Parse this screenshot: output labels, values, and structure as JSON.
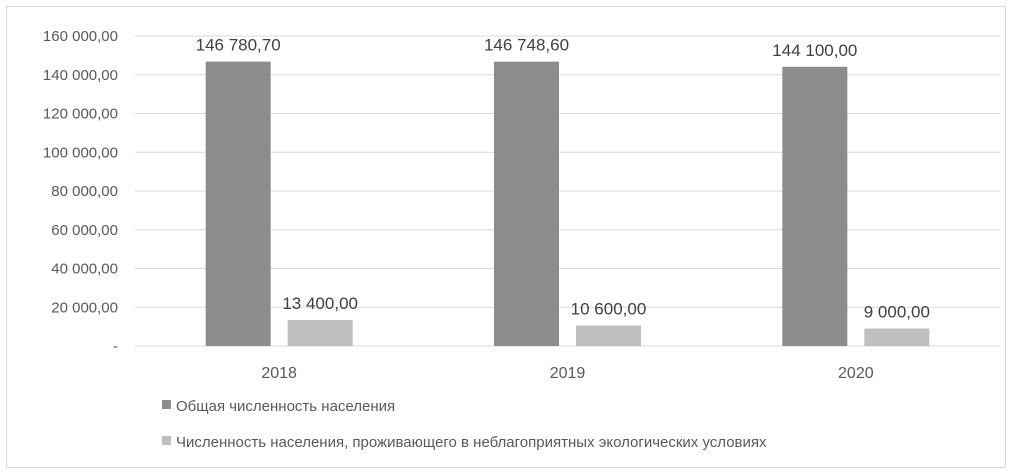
{
  "chart_data": {
    "type": "bar",
    "categories": [
      "2018",
      "2019",
      "2020"
    ],
    "series": [
      {
        "name": "Общая численность населения",
        "values": [
          146780.7,
          146748.6,
          144100.0
        ],
        "labels": [
          "146 780,70",
          "146 748,60",
          "144 100,00"
        ],
        "color": "#8c8c8c"
      },
      {
        "name": "Численность населения, проживающего в неблагоприятных экологических условиях",
        "values": [
          13400.0,
          10600.0,
          9000.0
        ],
        "labels": [
          "13 400,00",
          "10 600,00",
          "9 000,00"
        ],
        "color": "#bfbfbf"
      }
    ],
    "y_ticks": [
      0,
      20000,
      40000,
      60000,
      80000,
      100000,
      120000,
      140000,
      160000
    ],
    "y_tick_labels": [
      "-",
      "20 000,00",
      "40 000,00",
      "60 000,00",
      "80 000,00",
      "100 000,00",
      "120 000,00",
      "140 000,00",
      "160 000,00"
    ],
    "ylim": [
      0,
      160000
    ],
    "grid": true,
    "legend_position": "bottom-left",
    "gridline_color": "#d9d9d9"
  }
}
